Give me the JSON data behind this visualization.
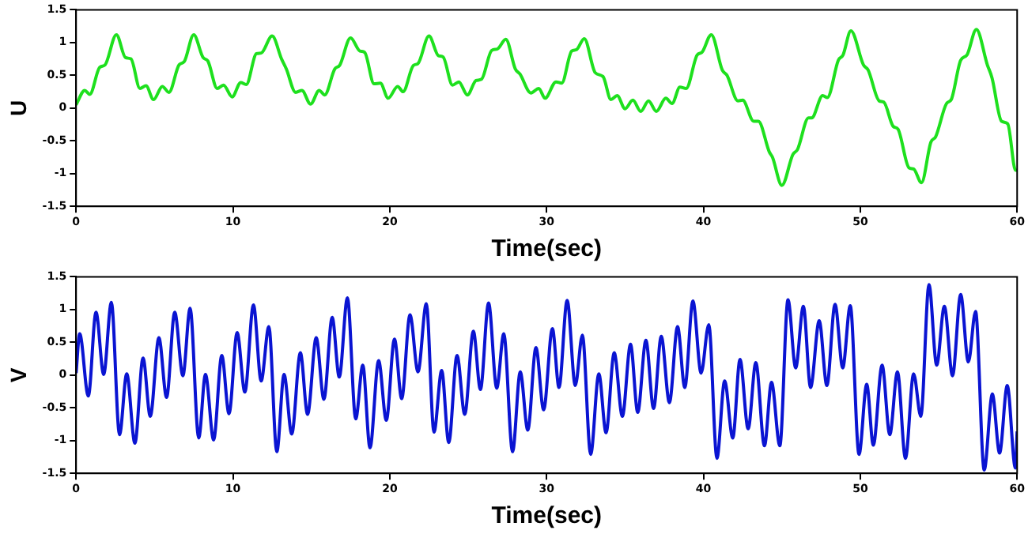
{
  "chart_data": [
    {
      "type": "line",
      "xlabel": "Time(sec)",
      "ylabel": "U",
      "xlim": [
        0,
        60
      ],
      "xticks": [
        0,
        10,
        20,
        30,
        40,
        50,
        60
      ],
      "ylim": [
        -1.5,
        1.5
      ],
      "yticks": [
        -1.5,
        -1,
        -0.5,
        0,
        0.5,
        1,
        1.5
      ],
      "grid": false,
      "legend": false,
      "x": [
        0,
        0.55,
        0.87,
        1.5,
        1.85,
        2.57,
        3.15,
        3.5,
        4.07,
        4.46,
        4.94,
        5.5,
        5.92,
        6.57,
        6.9,
        7.5,
        8.1,
        8.4,
        9.0,
        9.4,
        9.95,
        10.5,
        10.85,
        11.5,
        11.8,
        12.5,
        13.1,
        13.4,
        14.0,
        14.4,
        14.95,
        15.5,
        15.85,
        16.5,
        16.8,
        17.5,
        18.1,
        18.4,
        19.0,
        19.4,
        19.9,
        20.5,
        20.85,
        21.5,
        21.8,
        22.5,
        23.1,
        23.4,
        24.0,
        24.4,
        24.95,
        25.5,
        25.85,
        26.5,
        26.85,
        27.4,
        28.0,
        28.3,
        29.0,
        29.5,
        29.9,
        30.6,
        30.96,
        31.6,
        31.9,
        32.4,
        33.1,
        33.6,
        34.1,
        34.5,
        35.0,
        35.5,
        36.0,
        36.5,
        37.0,
        37.6,
        38.0,
        38.5,
        38.9,
        39.6,
        39.9,
        40.5,
        41.2,
        41.5,
        42.2,
        42.5,
        43.2,
        43.5,
        44.2,
        44.4,
        45.0,
        45.7,
        46.0,
        46.7,
        46.9,
        47.6,
        47.9,
        48.6,
        48.9,
        49.4,
        50.2,
        50.5,
        51.2,
        51.5,
        52.1,
        52.4,
        53.1,
        53.4,
        53.9,
        54.5,
        54.8,
        55.5,
        55.8,
        56.4,
        56.8,
        57.4,
        58.1,
        58.4,
        59.0,
        59.4,
        59.9,
        60
      ],
      "series": [
        {
          "color": "#1ee01e",
          "values": [
            0.05,
            0.27,
            0.21,
            0.62,
            0.66,
            1.12,
            0.77,
            0.75,
            0.3,
            0.34,
            0.13,
            0.33,
            0.24,
            0.66,
            0.71,
            1.12,
            0.77,
            0.72,
            0.3,
            0.35,
            0.17,
            0.39,
            0.36,
            0.83,
            0.84,
            1.1,
            0.75,
            0.6,
            0.24,
            0.27,
            0.06,
            0.27,
            0.2,
            0.6,
            0.65,
            1.07,
            0.87,
            0.85,
            0.37,
            0.38,
            0.15,
            0.33,
            0.25,
            0.65,
            0.68,
            1.1,
            0.8,
            0.78,
            0.35,
            0.4,
            0.2,
            0.42,
            0.44,
            0.88,
            0.9,
            1.05,
            0.6,
            0.52,
            0.23,
            0.3,
            0.15,
            0.4,
            0.38,
            0.87,
            0.89,
            1.06,
            0.54,
            0.48,
            0.13,
            0.19,
            -0.01,
            0.12,
            -0.05,
            0.11,
            -0.05,
            0.15,
            0.07,
            0.32,
            0.3,
            0.81,
            0.85,
            1.12,
            0.58,
            0.5,
            0.11,
            0.12,
            -0.2,
            -0.2,
            -0.67,
            -0.75,
            -1.18,
            -0.71,
            -0.63,
            -0.15,
            -0.15,
            0.19,
            0.16,
            0.73,
            0.81,
            1.18,
            0.66,
            0.58,
            0.11,
            0.09,
            -0.28,
            -0.32,
            -0.91,
            -0.93,
            -1.14,
            -0.52,
            -0.44,
            0.07,
            0.13,
            0.73,
            0.81,
            1.2,
            0.66,
            0.46,
            -0.2,
            -0.24,
            -0.95,
            -0.95
          ]
        }
      ]
    },
    {
      "type": "line",
      "xlabel": "Time(sec)",
      "ylabel": "V",
      "xlim": [
        0,
        60
      ],
      "xticks": [
        0,
        10,
        20,
        30,
        40,
        50,
        60
      ],
      "ylim": [
        -1.5,
        1.5
      ],
      "yticks": [
        -1.5,
        -1,
        -0.5,
        0,
        0.5,
        1,
        1.5
      ],
      "grid": false,
      "legend": false,
      "x": [
        0,
        0.23,
        0.78,
        1.27,
        1.76,
        2.25,
        2.77,
        3.23,
        3.75,
        4.27,
        4.73,
        5.28,
        5.77,
        6.29,
        6.81,
        7.27,
        7.82,
        8.25,
        8.77,
        9.29,
        9.75,
        10.27,
        10.76,
        11.31,
        11.8,
        12.29,
        12.8,
        13.26,
        13.75,
        14.3,
        14.76,
        15.31,
        15.8,
        16.33,
        16.78,
        17.3,
        17.83,
        18.28,
        18.74,
        19.29,
        19.78,
        20.3,
        20.76,
        21.29,
        21.8,
        22.33,
        22.82,
        23.31,
        23.76,
        24.29,
        24.78,
        25.33,
        25.78,
        26.3,
        26.82,
        27.27,
        27.83,
        28.32,
        28.8,
        29.32,
        29.81,
        30.37,
        30.79,
        31.31,
        31.83,
        32.28,
        32.81,
        33.33,
        33.79,
        34.31,
        34.83,
        35.35,
        35.81,
        36.33,
        36.82,
        37.31,
        37.83,
        38.35,
        38.81,
        39.33,
        39.85,
        40.34,
        40.86,
        41.35,
        41.87,
        42.33,
        42.85,
        43.34,
        43.89,
        44.34,
        44.87,
        45.39,
        45.88,
        46.37,
        46.83,
        47.38,
        47.87,
        48.39,
        48.88,
        49.36,
        49.92,
        50.41,
        50.83,
        51.39,
        51.88,
        52.37,
        52.88,
        53.4,
        53.86,
        54.38,
        54.87,
        55.36,
        55.88,
        56.4,
        56.89,
        57.35,
        57.9,
        58.42,
        58.88,
        59.37,
        59.89,
        60
      ],
      "series": [
        {
          "color": "#0a14d2",
          "values": [
            0.03,
            0.63,
            -0.32,
            0.96,
            0.01,
            1.11,
            -0.91,
            0.02,
            -1.04,
            0.26,
            -0.63,
            0.57,
            -0.34,
            0.96,
            -0.01,
            1.02,
            -0.96,
            0.01,
            -0.99,
            0.3,
            -0.59,
            0.65,
            -0.26,
            1.07,
            -0.09,
            0.74,
            -1.17,
            0.01,
            -0.9,
            0.34,
            -0.6,
            0.57,
            -0.37,
            0.88,
            -0.03,
            1.18,
            -0.67,
            0.15,
            -1.11,
            0.22,
            -0.69,
            0.55,
            -0.36,
            0.92,
            0.05,
            1.09,
            -0.87,
            0.07,
            -1.03,
            0.3,
            -0.6,
            0.67,
            -0.22,
            1.1,
            -0.2,
            0.63,
            -1.17,
            0.05,
            -0.84,
            0.42,
            -0.53,
            0.71,
            -0.19,
            1.14,
            -0.16,
            0.61,
            -1.21,
            0.02,
            -0.88,
            0.34,
            -0.63,
            0.47,
            -0.57,
            0.53,
            -0.51,
            0.59,
            -0.42,
            0.74,
            -0.19,
            1.13,
            0.03,
            0.77,
            -1.27,
            -0.09,
            -0.96,
            0.24,
            -0.82,
            0.19,
            -1.08,
            -0.11,
            -1.08,
            1.15,
            0.11,
            1.05,
            -0.19,
            0.83,
            -0.16,
            1.08,
            0.11,
            1.06,
            -1.21,
            -0.14,
            -1.07,
            0.15,
            -0.91,
            0.05,
            -1.27,
            0.02,
            -0.63,
            1.38,
            0.15,
            1.05,
            -0.01,
            1.23,
            0.2,
            0.97,
            -1.45,
            -0.29,
            -1.19,
            -0.16,
            -1.42,
            -0.86
          ]
        }
      ]
    }
  ]
}
